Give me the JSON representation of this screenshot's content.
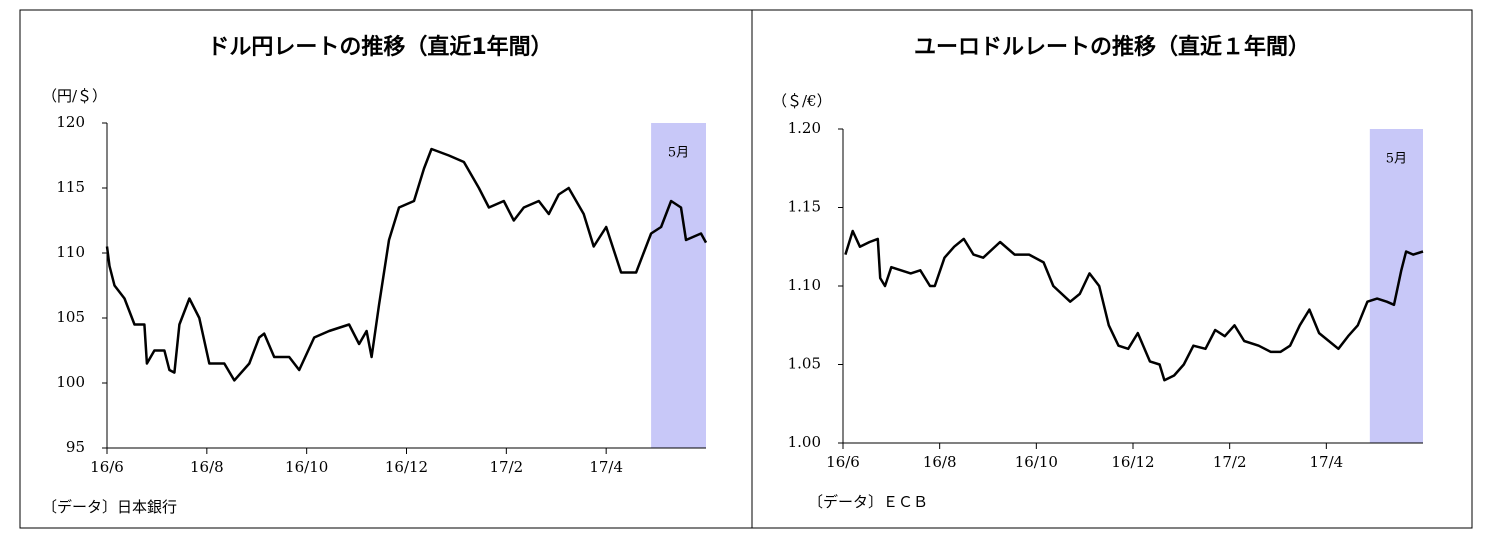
{
  "chart_data": [
    {
      "type": "line",
      "title": "ドル円レートの推移（直近1年間）",
      "y_label": "（円/＄）",
      "source": "〔データ〕日本銀行",
      "xlim": [
        0,
        12
      ],
      "xticks": [
        {
          "value": 0,
          "label": "16/6"
        },
        {
          "value": 2,
          "label": "16/8"
        },
        {
          "value": 4,
          "label": "16/10"
        },
        {
          "value": 6,
          "label": "16/12"
        },
        {
          "value": 8,
          "label": "17/2"
        },
        {
          "value": 10,
          "label": "17/4"
        }
      ],
      "ylim": [
        95,
        120
      ],
      "yticks": [
        95,
        100,
        105,
        110,
        115,
        120
      ],
      "highlight": {
        "range": [
          10.9,
          12
        ],
        "label": "5月",
        "color": "#c8c8f8"
      },
      "x": [
        0,
        0.05,
        0.15,
        0.35,
        0.55,
        0.75,
        0.8,
        0.95,
        1.15,
        1.25,
        1.35,
        1.45,
        1.55,
        1.65,
        1.85,
        2.05,
        2.35,
        2.55,
        2.85,
        3.05,
        3.15,
        3.35,
        3.65,
        3.85,
        4.15,
        4.45,
        4.85,
        5.05,
        5.2,
        5.3,
        5.45,
        5.65,
        5.85,
        6.15,
        6.35,
        6.5,
        6.85,
        7.15,
        7.45,
        7.65,
        7.95,
        8.15,
        8.35,
        8.65,
        8.85,
        9.05,
        9.25,
        9.55,
        9.75,
        10,
        10.3,
        10.6,
        10.75,
        10.9,
        11.1,
        11.3,
        11.5,
        11.6,
        11.9,
        12
      ],
      "series": [
        {
          "color": "#000000",
          "values": [
            110.5,
            109,
            107.5,
            106.5,
            104.5,
            104.5,
            101.5,
            102.5,
            102.5,
            101,
            100.8,
            104.5,
            105.5,
            106.5,
            105,
            101.5,
            101.5,
            100.2,
            101.5,
            103.5,
            103.8,
            102,
            102,
            101,
            103.5,
            104,
            104.5,
            103,
            104,
            102,
            106,
            111,
            113.5,
            114,
            116.5,
            118,
            117.5,
            117,
            115,
            113.5,
            114,
            112.5,
            113.5,
            114,
            113,
            114.5,
            115,
            113,
            110.5,
            112,
            108.5,
            108.5,
            110,
            111.5,
            112,
            114,
            113.5,
            111,
            111.5,
            110.8
          ]
        }
      ]
    },
    {
      "type": "line",
      "title": "ユーロドルレートの推移（直近１年間）",
      "y_label": "（＄/€）",
      "source": "〔データ〕ＥＣＢ",
      "xlim": [
        0,
        12
      ],
      "xticks": [
        {
          "value": 0,
          "label": "16/6"
        },
        {
          "value": 2,
          "label": "16/8"
        },
        {
          "value": 4,
          "label": "16/10"
        },
        {
          "value": 6,
          "label": "16/12"
        },
        {
          "value": 8,
          "label": "17/2"
        },
        {
          "value": 10,
          "label": "17/4"
        }
      ],
      "ylim": [
        1.0,
        1.2
      ],
      "yticks": [
        {
          "value": 1.0,
          "label": "1.00"
        },
        1.05,
        {
          "value": 1.1,
          "label": "1.10"
        },
        1.15,
        {
          "value": 1.2,
          "label": "1.20"
        }
      ],
      "highlight": {
        "range": [
          10.9,
          12
        ],
        "label": "5月",
        "color": "#c8c8f8"
      },
      "x": [
        0.05,
        0.2,
        0.35,
        0.55,
        0.72,
        0.77,
        0.87,
        1.0,
        1.2,
        1.4,
        1.6,
        1.8,
        1.9,
        2.1,
        2.3,
        2.5,
        2.7,
        2.9,
        3.25,
        3.55,
        3.85,
        4.15,
        4.35,
        4.7,
        4.9,
        5.1,
        5.3,
        5.5,
        5.7,
        5.9,
        6.1,
        6.35,
        6.55,
        6.65,
        6.85,
        7.05,
        7.25,
        7.5,
        7.7,
        7.9,
        8.1,
        8.3,
        8.6,
        8.85,
        9.05,
        9.25,
        9.45,
        9.65,
        9.85,
        10.05,
        10.25,
        10.45,
        10.65,
        10.85,
        11.05,
        11.25,
        11.4,
        11.55,
        11.65,
        11.8,
        12
      ],
      "series": [
        {
          "color": "#000000",
          "values": [
            1.12,
            1.135,
            1.125,
            1.128,
            1.13,
            1.105,
            1.1,
            1.112,
            1.11,
            1.108,
            1.11,
            1.1,
            1.1,
            1.118,
            1.125,
            1.13,
            1.12,
            1.118,
            1.128,
            1.12,
            1.12,
            1.115,
            1.1,
            1.09,
            1.095,
            1.108,
            1.1,
            1.075,
            1.062,
            1.06,
            1.07,
            1.052,
            1.05,
            1.04,
            1.043,
            1.05,
            1.062,
            1.06,
            1.072,
            1.068,
            1.075,
            1.065,
            1.062,
            1.058,
            1.058,
            1.062,
            1.075,
            1.085,
            1.07,
            1.065,
            1.06,
            1.068,
            1.075,
            1.09,
            1.092,
            1.09,
            1.088,
            1.11,
            1.122,
            1.12,
            1.122
          ]
        }
      ]
    }
  ]
}
